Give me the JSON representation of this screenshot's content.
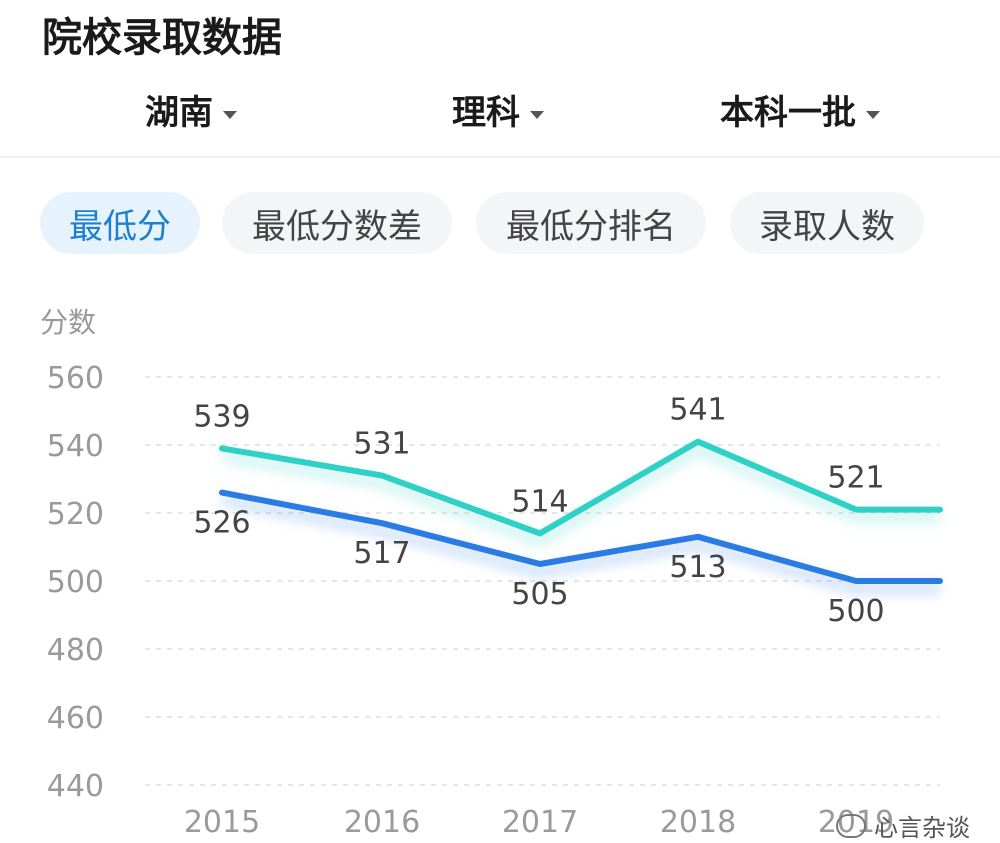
{
  "page": {
    "title": "院校录取数据"
  },
  "filters": [
    {
      "label": "湖南"
    },
    {
      "label": "理科"
    },
    {
      "label": "本科一批"
    }
  ],
  "tabs": [
    {
      "label": "最低分",
      "active": true
    },
    {
      "label": "最低分数差",
      "active": false
    },
    {
      "label": "最低分排名",
      "active": false
    },
    {
      "label": "录取人数",
      "active": false
    }
  ],
  "chart_data": {
    "type": "line",
    "ylabel": "分数",
    "ylim": [
      440,
      560
    ],
    "yticks": [
      560,
      540,
      520,
      500,
      480,
      460,
      440
    ],
    "categories": [
      "2015",
      "2016",
      "2017",
      "2018",
      "2019"
    ],
    "grid": true,
    "series": [
      {
        "color": "#2fd0c6",
        "values": [
          539,
          531,
          514,
          541,
          521
        ],
        "labels": [
          "539",
          "531",
          "514",
          "541",
          "521"
        ]
      },
      {
        "color": "#2b7be4",
        "values": [
          526,
          517,
          505,
          513,
          500
        ],
        "labels": [
          "526",
          "517",
          "505",
          "513",
          "500"
        ]
      }
    ]
  },
  "watermark": {
    "text": "心言杂谈"
  }
}
